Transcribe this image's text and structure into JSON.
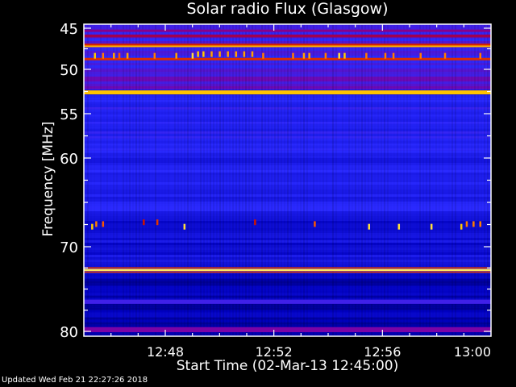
{
  "chart_data": {
    "type": "heatmap",
    "title": "Solar radio Flux (Glasgow)",
    "xlabel": "Start Time (02-Mar-13 12:45:00)",
    "ylabel": "Frequency [MHz]",
    "x_range_minutes_after_start": [
      0,
      15
    ],
    "xlim": [
      "12:45",
      "13:00"
    ],
    "ylim": [
      44.5,
      80.6
    ],
    "y_inverted": true,
    "x_ticks": [
      {
        "label": "12:48",
        "minute": 3
      },
      {
        "label": "12:52",
        "minute": 7
      },
      {
        "label": "12:56",
        "minute": 11
      },
      {
        "label": "13:00",
        "minute": 15
      }
    ],
    "y_ticks": [
      {
        "label": "45",
        "mhz": 45
      },
      {
        "label": "50",
        "mhz": 50
      },
      {
        "label": "55",
        "mhz": 55
      },
      {
        "label": "60",
        "mhz": 60
      },
      {
        "label": "70",
        "mhz": 70
      },
      {
        "label": "80",
        "mhz": 80
      }
    ],
    "colormap": [
      "#000030",
      "#0000c0",
      "#2a2aff",
      "#8000a0",
      "#c00000",
      "#ff6000",
      "#ffd000",
      "#ffffc0"
    ],
    "background_levels": [
      {
        "from_mhz": 44.5,
        "to_mhz": 50.0,
        "level": 0.32
      },
      {
        "from_mhz": 50.0,
        "to_mhz": 52.3,
        "level": 0.36
      },
      {
        "from_mhz": 52.9,
        "to_mhz": 60.0,
        "level": 0.27
      },
      {
        "from_mhz": 60.0,
        "to_mhz": 66.0,
        "level": 0.25
      },
      {
        "from_mhz": 66.0,
        "to_mhz": 72.5,
        "level": 0.2
      },
      {
        "from_mhz": 73.2,
        "to_mhz": 80.6,
        "level": 0.14
      }
    ],
    "bands": [
      {
        "mhz": 45.3,
        "width_mhz": 0.3,
        "level": 0.45
      },
      {
        "mhz": 45.95,
        "width_mhz": 0.35,
        "level": 0.5
      },
      {
        "mhz": 47.0,
        "width_mhz": 0.25,
        "level": 0.62
      },
      {
        "mhz": 47.2,
        "width_mhz": 0.2,
        "level": 0.82
      },
      {
        "mhz": 48.75,
        "width_mhz": 0.3,
        "level": 0.64
      },
      {
        "mhz": 52.6,
        "width_mhz": 0.45,
        "level": 0.84
      },
      {
        "mhz": 72.75,
        "width_mhz": 0.25,
        "level": 0.93
      },
      {
        "mhz": 72.5,
        "width_mhz": 0.15,
        "level": 0.65
      },
      {
        "mhz": 73.0,
        "width_mhz": 0.15,
        "level": 0.65
      },
      {
        "mhz": 76.5,
        "width_mhz": 0.5,
        "level": 0.32
      },
      {
        "mhz": 79.8,
        "width_mhz": 0.6,
        "level": 0.42
      }
    ],
    "bursts": [
      {
        "mhz": 48.3,
        "minute": 0.4,
        "level": 0.85
      },
      {
        "mhz": 48.3,
        "minute": 0.7,
        "level": 0.75
      },
      {
        "mhz": 48.3,
        "minute": 1.1,
        "level": 0.8
      },
      {
        "mhz": 48.3,
        "minute": 1.3,
        "level": 0.7
      },
      {
        "mhz": 48.3,
        "minute": 1.6,
        "level": 0.8
      },
      {
        "mhz": 48.3,
        "minute": 2.6,
        "level": 0.75
      },
      {
        "mhz": 48.3,
        "minute": 3.4,
        "level": 0.8
      },
      {
        "mhz": 48.3,
        "minute": 4.0,
        "level": 0.9
      },
      {
        "mhz": 48.1,
        "minute": 4.2,
        "level": 0.85
      },
      {
        "mhz": 48.1,
        "minute": 4.4,
        "level": 0.85
      },
      {
        "mhz": 48.1,
        "minute": 4.7,
        "level": 0.8
      },
      {
        "mhz": 48.1,
        "minute": 5.0,
        "level": 0.8
      },
      {
        "mhz": 48.1,
        "minute": 5.3,
        "level": 0.8
      },
      {
        "mhz": 48.1,
        "minute": 5.6,
        "level": 0.8
      },
      {
        "mhz": 48.1,
        "minute": 5.9,
        "level": 0.8
      },
      {
        "mhz": 48.1,
        "minute": 6.2,
        "level": 0.8
      },
      {
        "mhz": 48.3,
        "minute": 6.6,
        "level": 0.75
      },
      {
        "mhz": 48.3,
        "minute": 7.7,
        "level": 0.75
      },
      {
        "mhz": 48.3,
        "minute": 8.1,
        "level": 0.8
      },
      {
        "mhz": 48.3,
        "minute": 8.3,
        "level": 0.8
      },
      {
        "mhz": 48.3,
        "minute": 8.9,
        "level": 0.75
      },
      {
        "mhz": 48.3,
        "minute": 9.4,
        "level": 0.9
      },
      {
        "mhz": 48.3,
        "minute": 9.6,
        "level": 0.85
      },
      {
        "mhz": 48.3,
        "minute": 10.4,
        "level": 0.75
      },
      {
        "mhz": 48.3,
        "minute": 11.1,
        "level": 0.75
      },
      {
        "mhz": 48.3,
        "minute": 11.4,
        "level": 0.75
      },
      {
        "mhz": 48.3,
        "minute": 12.4,
        "level": 0.75
      },
      {
        "mhz": 48.3,
        "minute": 13.3,
        "level": 0.75
      },
      {
        "mhz": 48.3,
        "minute": 14.6,
        "level": 0.75
      },
      {
        "mhz": 67.7,
        "minute": 0.3,
        "level": 0.85
      },
      {
        "mhz": 67.4,
        "minute": 0.45,
        "level": 0.75
      },
      {
        "mhz": 67.4,
        "minute": 0.7,
        "level": 0.7
      },
      {
        "mhz": 67.2,
        "minute": 2.2,
        "level": 0.6
      },
      {
        "mhz": 67.2,
        "minute": 2.7,
        "level": 0.65
      },
      {
        "mhz": 67.7,
        "minute": 3.7,
        "level": 0.9
      },
      {
        "mhz": 67.2,
        "minute": 6.3,
        "level": 0.6
      },
      {
        "mhz": 67.4,
        "minute": 8.5,
        "level": 0.7
      },
      {
        "mhz": 67.7,
        "minute": 10.5,
        "level": 0.9
      },
      {
        "mhz": 67.7,
        "minute": 11.6,
        "level": 0.9
      },
      {
        "mhz": 67.7,
        "minute": 12.8,
        "level": 0.9
      },
      {
        "mhz": 67.7,
        "minute": 13.9,
        "level": 0.85
      },
      {
        "mhz": 67.4,
        "minute": 14.1,
        "level": 0.75
      },
      {
        "mhz": 67.4,
        "minute": 14.35,
        "level": 0.75
      },
      {
        "mhz": 67.4,
        "minute": 14.6,
        "level": 0.75
      }
    ]
  },
  "footer": {
    "updated": "Updated Wed Feb 21 22:27:26 2018"
  }
}
